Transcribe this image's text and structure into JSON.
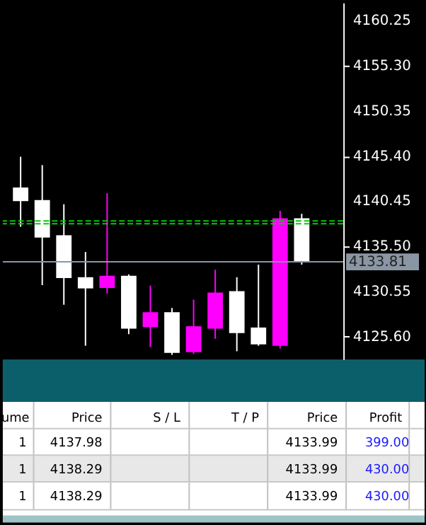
{
  "chart_data": {
    "type": "candlestick",
    "categories": [
      null,
      null,
      null,
      null,
      null,
      null,
      null,
      null,
      null,
      null,
      null,
      null,
      null,
      null
    ],
    "ohlc": [
      [
        4141.96,
        4145.34,
        4137.66,
        4140.47
      ],
      [
        4140.58,
        4144.42,
        4131.25,
        4136.47
      ],
      [
        4136.73,
        4140.12,
        4129.1,
        4132.03
      ],
      [
        4132.12,
        4134.89,
        4124.6,
        4130.89
      ],
      [
        4130.94,
        4141.34,
        4130.32,
        4132.28
      ],
      [
        4132.28,
        4132.43,
        4125.87,
        4126.48
      ],
      [
        4126.64,
        4131.2,
        4124.44,
        4128.28
      ],
      [
        4128.28,
        4128.74,
        4123.6,
        4123.82
      ],
      [
        4123.9,
        4129.66,
        4123.7,
        4126.74
      ],
      [
        4126.48,
        4132.94,
        4125.36,
        4130.43
      ],
      [
        4130.59,
        4132.12,
        4124.0,
        4126.0
      ],
      [
        4126.6,
        4133.5,
        4124.6,
        4124.75
      ],
      [
        4124.6,
        4139.4,
        4124.3,
        4138.58
      ],
      [
        4138.58,
        4139.08,
        4133.5,
        4133.81
      ]
    ],
    "colors": [
      "#ffffff",
      "#ffffff",
      "#ffffff",
      "#ffffff",
      "#ff00ff",
      "#ffffff",
      "#ff00ff",
      "#ffffff",
      "#ff00ff",
      "#ff00ff",
      "#ffffff",
      "#ffffff",
      "#ff00ff",
      "#ffffff"
    ],
    "ylim": [
      4123.05,
      4162.25
    ],
    "yticks": [
      4160.25,
      {
        "value": 4155.3,
        "label": "4155.30"
      },
      {
        "value": 4150.35,
        "label": "4150.35"
      },
      {
        "value": 4145.4,
        "label": "4145.40"
      },
      {
        "value": 4140.45,
        "label": "4140.45"
      },
      {
        "value": 4135.5,
        "label": "4135.50"
      },
      {
        "value": 4130.55,
        "label": "4130.55"
      },
      {
        "value": 4125.6,
        "label": "4125.60"
      }
    ],
    "tick_labels": "y",
    "grid": false,
    "ref_lines": [
      {
        "axis": "y",
        "value": 4137.98,
        "color": "#00cc00",
        "line_style": "dashed"
      },
      {
        "axis": "y",
        "value": 4138.29,
        "color": "#00cc00",
        "line_style": "dashed"
      },
      {
        "axis": "y",
        "value": 4133.81,
        "label": "4133.81",
        "color": "#8a96a3",
        "line_style": "solid"
      }
    ],
    "annotations": [
      "ume",
      "Price",
      "S / L",
      "T / P",
      "Price",
      "Profit",
      "1",
      "4137.98",
      "4133.99",
      "399.00",
      "1",
      "4138.29",
      "4133.99",
      "430.00",
      "1",
      "4138.29",
      "4133.99",
      "430.00"
    ]
  }
}
